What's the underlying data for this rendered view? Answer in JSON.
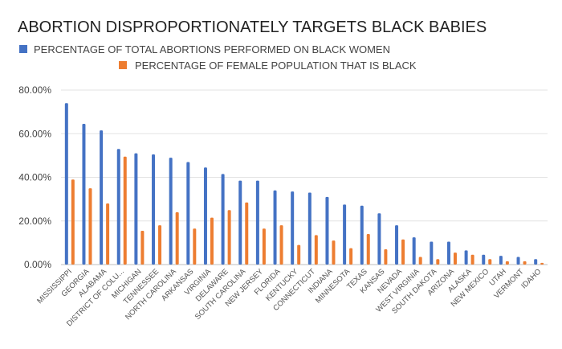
{
  "chart_data": {
    "type": "bar",
    "title": "ABORTION DISPROPORTIONATELY TARGETS BLACK BABIES",
    "xlabel": "",
    "ylabel": "",
    "ylim": [
      0,
      80
    ],
    "y_ticks": [
      "0.00%",
      "20.00%",
      "40.00%",
      "60.00%",
      "80.00%"
    ],
    "y_tick_values": [
      0,
      20,
      40,
      60,
      80
    ],
    "grid": true,
    "legend_position": "top",
    "categories": [
      "MISSISSIPPI",
      "GEORGIA",
      "ALABAMA",
      "DISTRICT OF COLU...",
      "MICHIGAN",
      "TENNESSEE",
      "NORTH CAROLINA",
      "ARKANSAS",
      "VIRGINIA",
      "DELAWARE",
      "SOUTH CAROLINA",
      "NEW JERSEY",
      "FLORIDA",
      "KENTUCKY",
      "CONNECTICUT",
      "INDIANA",
      "MINNESOTA",
      "TEXAS",
      "KANSAS",
      "NEVADA",
      "WEST VIRGINIA",
      "SOUTH DAKOTA",
      "ARIZONA",
      "ALASKA",
      "NEW MEXICO",
      "UTAH",
      "VERMONT",
      "IDAHO"
    ],
    "series": [
      {
        "name": "PERCENTAGE OF TOTAL ABORTIONS PERFORMED ON BLACK WOMEN",
        "color": "#4472c4",
        "values": [
          74,
          64.5,
          61.5,
          53,
          51,
          50.5,
          49,
          47,
          44.5,
          41.5,
          38.5,
          38.5,
          34,
          33.5,
          33,
          31,
          27.5,
          27,
          23.5,
          18,
          12.5,
          10.5,
          10.5,
          6.5,
          4.5,
          4,
          3.5,
          2.5
        ]
      },
      {
        "name": "PERCENTAGE OF FEMALE POPULATION THAT IS BLACK",
        "color": "#ed7d31",
        "values": [
          39,
          35,
          28,
          49.5,
          15.5,
          18,
          24,
          16.5,
          21.5,
          25,
          28.5,
          16.5,
          18,
          9,
          13.5,
          11,
          7.5,
          14,
          7,
          11.5,
          3.5,
          2.5,
          5.5,
          4.5,
          2.5,
          1.5,
          1.5,
          0.8
        ]
      }
    ]
  }
}
